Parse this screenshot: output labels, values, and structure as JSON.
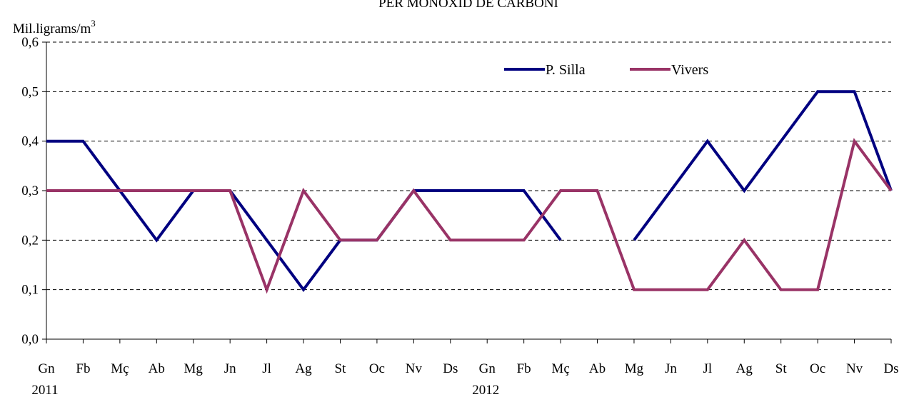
{
  "chart_data": {
    "type": "line",
    "title": "PER MONÒXID DE CARBONI",
    "ylabel": "Mil.ligrams/m",
    "ylabel_superscript": "3",
    "ylim": [
      0,
      0.6
    ],
    "yticks": [
      "0,0",
      "0,1",
      "0,2",
      "0,3",
      "0,4",
      "0,5",
      "0,6"
    ],
    "categories": [
      "Gn",
      "Fb",
      "Mç",
      "Ab",
      "Mg",
      "Jn",
      "Jl",
      "Ag",
      "St",
      "Oc",
      "Nv",
      "Ds",
      "Gn",
      "Fb",
      "Mç",
      "Ab",
      "Mg",
      "Jn",
      "Jl",
      "Ag",
      "St",
      "Oc",
      "Nv",
      "Ds"
    ],
    "year_labels": [
      {
        "index": 0,
        "text": "2011"
      },
      {
        "index": 12,
        "text": "2012"
      }
    ],
    "grid": true,
    "legend_position": "top-right",
    "series": [
      {
        "name": "P. Silla",
        "color": "#000080",
        "values": [
          0.4,
          0.4,
          0.3,
          0.2,
          0.3,
          0.3,
          0.2,
          0.1,
          0.2,
          0.2,
          0.3,
          0.3,
          0.3,
          0.3,
          0.2,
          null,
          0.2,
          0.3,
          0.4,
          0.3,
          0.4,
          0.5,
          0.5,
          0.3
        ]
      },
      {
        "name": "Vivers",
        "color": "#993366",
        "values": [
          0.3,
          0.3,
          0.3,
          0.3,
          0.3,
          0.3,
          0.1,
          0.3,
          0.2,
          0.2,
          0.3,
          0.2,
          0.2,
          0.2,
          0.3,
          0.3,
          0.1,
          0.1,
          0.1,
          0.2,
          0.1,
          0.1,
          0.4,
          0.3
        ]
      }
    ]
  }
}
